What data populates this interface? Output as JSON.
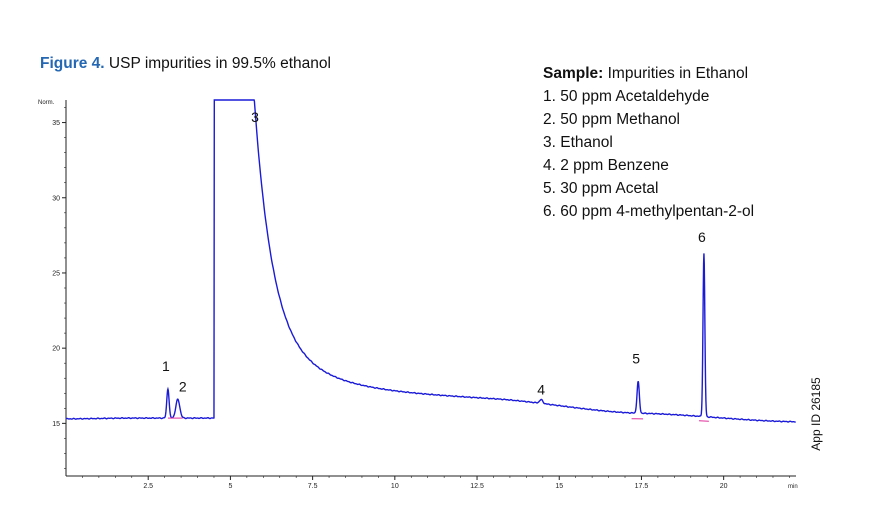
{
  "figure": {
    "label": "Figure 4.",
    "title": "USP impurities in 99.5% ethanol"
  },
  "sample": {
    "label": "Sample:",
    "name": "Impurities in Ethanol",
    "items": [
      "1. 50 ppm Acetaldehyde",
      "2. 50 ppm Methanol",
      "3. Ethanol",
      "4. 2 ppm Benzene",
      "5. 30 ppm Acetal",
      "6. 60 ppm 4-methylpentan-2-ol"
    ]
  },
  "app_id": "App ID 26185",
  "colors": {
    "accent": "#2467b3",
    "trace": "#1a1ad8",
    "baseline_marks": "#e0309a"
  },
  "chart_data": {
    "type": "line",
    "ylabel": "Norm.",
    "xlabel": "min",
    "xlim": [
      0,
      22.2
    ],
    "ylim": [
      11.5,
      36.5
    ],
    "x_ticks": [
      2.5,
      5,
      7.5,
      10,
      12.5,
      15,
      17.5,
      20
    ],
    "x_tick_labels": [
      "2.5",
      "5",
      "7.5",
      "10",
      "12.5",
      "15",
      "17.5",
      "20"
    ],
    "y_ticks": [
      15,
      20,
      25,
      30,
      35
    ],
    "y_tick_labels": [
      "15",
      "20",
      "25",
      "30",
      "35"
    ],
    "grid": false,
    "series": [
      {
        "baseline_points": [
          [
            0,
            15.3
          ],
          [
            2,
            15.35
          ],
          [
            4.5,
            15.35
          ],
          [
            13,
            15.9
          ],
          [
            17.5,
            15.3
          ],
          [
            22.2,
            14.9
          ]
        ],
        "peaks": [
          {
            "label": "1",
            "rt": 3.1,
            "height": 17.3
          },
          {
            "label": "2",
            "rt": 3.4,
            "height": 16.6
          },
          {
            "label": "3",
            "rt": 5.2,
            "height": 36.5
          },
          {
            "label": "4",
            "rt": 14.45,
            "height": 16.0
          },
          {
            "label": "5",
            "rt": 17.4,
            "height": 17.4
          },
          {
            "label": "6",
            "rt": 19.4,
            "height": 26.0
          }
        ]
      }
    ]
  }
}
